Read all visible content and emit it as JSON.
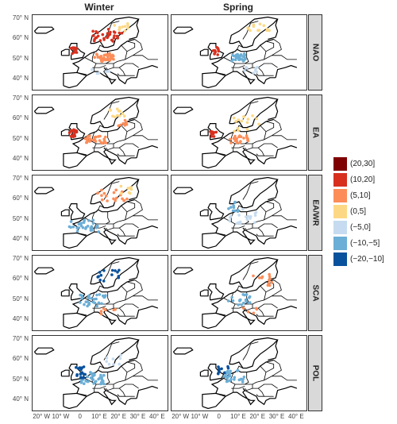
{
  "columns": [
    "Winter",
    "Spring"
  ],
  "rows": [
    "NAO",
    "EA",
    "EA/WR",
    "SCA",
    "POL"
  ],
  "lat_labels": [
    "70° N",
    "60° N",
    "50° N",
    "40° N"
  ],
  "lon_labels": [
    "20° W",
    "10° W",
    "0",
    "10° E",
    "20° E",
    "30° E",
    "40° E"
  ],
  "legend": [
    {
      "label": "(20,30]",
      "color": "#7f0000"
    },
    {
      "label": "(10,20]",
      "color": "#d7301f"
    },
    {
      "label": "(5,10]",
      "color": "#fc8d59"
    },
    {
      "label": "(0,5]",
      "color": "#fdd884"
    },
    {
      "label": "(−5,0]",
      "color": "#c6dbef"
    },
    {
      "label": "(−10,−5]",
      "color": "#6baed6"
    },
    {
      "label": "(−20,−10]",
      "color": "#08519c"
    }
  ],
  "point_clusters": [
    {
      "row": 0,
      "col": 0,
      "class": 2,
      "lon": 12,
      "lat": 51,
      "spread_lon": 5,
      "spread_lat": 2,
      "n": 40
    },
    {
      "row": 0,
      "col": 0,
      "class": 1,
      "lon": 14,
      "lat": 62,
      "spread_lon": 8,
      "spread_lat": 3,
      "n": 30
    },
    {
      "row": 0,
      "col": 0,
      "class": 1,
      "lon": -3,
      "lat": 54,
      "spread_lon": 2,
      "spread_lat": 2,
      "n": 12
    },
    {
      "row": 0,
      "col": 0,
      "class": 3,
      "lon": 22,
      "lat": 66,
      "spread_lon": 5,
      "spread_lat": 2,
      "n": 10
    },
    {
      "row": 0,
      "col": 0,
      "class": 4,
      "lon": 10,
      "lat": 44,
      "spread_lon": 6,
      "spread_lat": 1,
      "n": 6
    },
    {
      "row": 0,
      "col": 1,
      "class": 5,
      "lon": 10,
      "lat": 51,
      "spread_lon": 4,
      "spread_lat": 2,
      "n": 30
    },
    {
      "row": 0,
      "col": 1,
      "class": 1,
      "lon": -2,
      "lat": 54,
      "spread_lon": 2,
      "spread_lat": 2,
      "n": 10
    },
    {
      "row": 0,
      "col": 1,
      "class": 3,
      "lon": 20,
      "lat": 66,
      "spread_lon": 6,
      "spread_lat": 2,
      "n": 12
    },
    {
      "row": 0,
      "col": 1,
      "class": 4,
      "lon": 15,
      "lat": 45,
      "spread_lon": 5,
      "spread_lat": 2,
      "n": 8
    },
    {
      "row": 1,
      "col": 0,
      "class": 2,
      "lon": 8,
      "lat": 50,
      "spread_lon": 6,
      "spread_lat": 2,
      "n": 30
    },
    {
      "row": 1,
      "col": 0,
      "class": 1,
      "lon": -4,
      "lat": 53,
      "spread_lon": 2,
      "spread_lat": 2,
      "n": 18
    },
    {
      "row": 1,
      "col": 0,
      "class": 3,
      "lon": 18,
      "lat": 63,
      "spread_lon": 6,
      "spread_lat": 3,
      "n": 12
    },
    {
      "row": 1,
      "col": 0,
      "class": 2,
      "lon": 22,
      "lat": 58,
      "spread_lon": 3,
      "spread_lat": 2,
      "n": 8
    },
    {
      "row": 1,
      "col": 1,
      "class": 2,
      "lon": 10,
      "lat": 50,
      "spread_lon": 5,
      "spread_lat": 2,
      "n": 22
    },
    {
      "row": 1,
      "col": 1,
      "class": 3,
      "lon": 14,
      "lat": 58,
      "spread_lon": 8,
      "spread_lat": 4,
      "n": 15
    },
    {
      "row": 1,
      "col": 1,
      "class": 1,
      "lon": -3,
      "lat": 53,
      "spread_lon": 2,
      "spread_lat": 2,
      "n": 8
    },
    {
      "row": 2,
      "col": 0,
      "class": 5,
      "lon": 2,
      "lat": 47,
      "spread_lon": 8,
      "spread_lat": 3,
      "n": 30
    },
    {
      "row": 2,
      "col": 0,
      "class": 2,
      "lon": 16,
      "lat": 62,
      "spread_lon": 8,
      "spread_lat": 3,
      "n": 18
    },
    {
      "row": 2,
      "col": 0,
      "class": 3,
      "lon": 22,
      "lat": 65,
      "spread_lon": 5,
      "spread_lat": 2,
      "n": 8
    },
    {
      "row": 2,
      "col": 1,
      "class": 4,
      "lon": 12,
      "lat": 52,
      "spread_lon": 8,
      "spread_lat": 4,
      "n": 18
    },
    {
      "row": 2,
      "col": 1,
      "class": 5,
      "lon": 6,
      "lat": 56,
      "spread_lon": 4,
      "spread_lat": 3,
      "n": 10
    },
    {
      "row": 3,
      "col": 0,
      "class": 5,
      "lon": 6,
      "lat": 50,
      "spread_lon": 7,
      "spread_lat": 3,
      "n": 30
    },
    {
      "row": 3,
      "col": 0,
      "class": 6,
      "lon": 14,
      "lat": 62,
      "spread_lon": 6,
      "spread_lat": 3,
      "n": 14
    },
    {
      "row": 3,
      "col": 0,
      "class": 2,
      "lon": 14,
      "lat": 45,
      "spread_lon": 4,
      "spread_lat": 2,
      "n": 6
    },
    {
      "row": 3,
      "col": 1,
      "class": 5,
      "lon": 10,
      "lat": 50,
      "spread_lon": 6,
      "spread_lat": 3,
      "n": 18
    },
    {
      "row": 3,
      "col": 1,
      "class": 2,
      "lon": 22,
      "lat": 60,
      "spread_lon": 6,
      "spread_lat": 3,
      "n": 12
    },
    {
      "row": 3,
      "col": 1,
      "class": 2,
      "lon": 16,
      "lat": 44,
      "spread_lon": 4,
      "spread_lat": 2,
      "n": 5
    },
    {
      "row": 4,
      "col": 0,
      "class": 5,
      "lon": 6,
      "lat": 51,
      "spread_lon": 6,
      "spread_lat": 3,
      "n": 35
    },
    {
      "row": 4,
      "col": 0,
      "class": 6,
      "lon": 0,
      "lat": 54,
      "spread_lon": 3,
      "spread_lat": 3,
      "n": 15
    },
    {
      "row": 4,
      "col": 0,
      "class": 4,
      "lon": 16,
      "lat": 60,
      "spread_lon": 6,
      "spread_lat": 3,
      "n": 8
    },
    {
      "row": 4,
      "col": 1,
      "class": 5,
      "lon": 8,
      "lat": 52,
      "spread_lon": 6,
      "spread_lat": 3,
      "n": 25
    },
    {
      "row": 4,
      "col": 1,
      "class": 6,
      "lon": 2,
      "lat": 55,
      "spread_lon": 3,
      "spread_lat": 2,
      "n": 10
    }
  ]
}
